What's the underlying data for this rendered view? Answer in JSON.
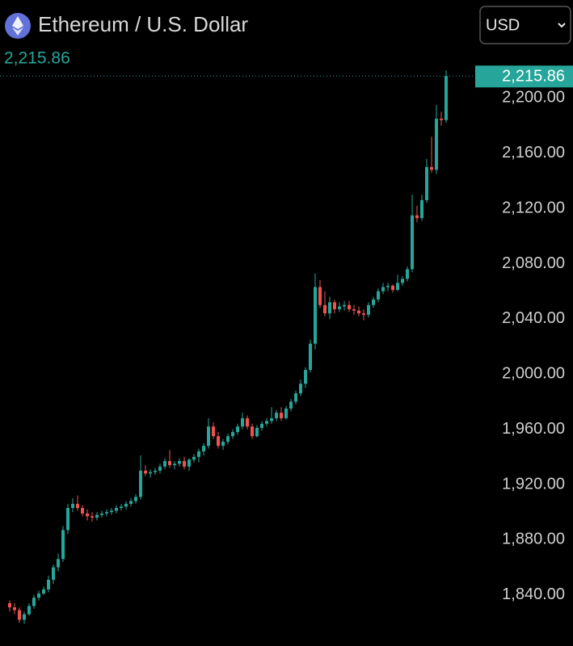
{
  "header": {
    "title": "Ethereum / U.S. Dollar",
    "currency": "USD"
  },
  "chart_data": {
    "type": "candlestick",
    "last_price": {
      "value": 2215.86,
      "label": "2,215.86"
    },
    "up_color": "#26a69a",
    "down_color": "#ef5350",
    "ylim": [
      1803,
      2271
    ],
    "yticks": [
      {
        "value": 1840,
        "label": "1,840.00"
      },
      {
        "value": 1880,
        "label": "1,880.00"
      },
      {
        "value": 1920,
        "label": "1,920.00"
      },
      {
        "value": 1960,
        "label": "1,960.00"
      },
      {
        "value": 2000,
        "label": "2,000.00"
      },
      {
        "value": 2040,
        "label": "2,040.00"
      },
      {
        "value": 2080,
        "label": "2,080.00"
      },
      {
        "value": 2120,
        "label": "2,120.00"
      },
      {
        "value": 2160,
        "label": "2,160.00"
      },
      {
        "value": 2200,
        "label": "2,200.00"
      }
    ],
    "ohlc": [
      [
        1834,
        1836,
        1828,
        1831
      ],
      [
        1831,
        1834,
        1826,
        1829
      ],
      [
        1829,
        1831,
        1820,
        1822
      ],
      [
        1822,
        1828,
        1819,
        1826
      ],
      [
        1826,
        1834,
        1825,
        1832
      ],
      [
        1832,
        1840,
        1830,
        1838
      ],
      [
        1838,
        1843,
        1836,
        1841
      ],
      [
        1841,
        1846,
        1840,
        1844
      ],
      [
        1844,
        1854,
        1842,
        1851
      ],
      [
        1851,
        1862,
        1848,
        1860
      ],
      [
        1860,
        1870,
        1857,
        1866
      ],
      [
        1866,
        1890,
        1864,
        1887
      ],
      [
        1887,
        1906,
        1884,
        1903
      ],
      [
        1903,
        1910,
        1900,
        1906
      ],
      [
        1906,
        1912,
        1901,
        1903
      ],
      [
        1903,
        1905,
        1897,
        1899
      ],
      [
        1899,
        1902,
        1894,
        1897
      ],
      [
        1897,
        1900,
        1893,
        1896
      ],
      [
        1896,
        1900,
        1894,
        1898
      ],
      [
        1898,
        1901,
        1896,
        1899
      ],
      [
        1899,
        1902,
        1897,
        1900
      ],
      [
        1900,
        1903,
        1898,
        1901
      ],
      [
        1901,
        1905,
        1899,
        1903
      ],
      [
        1903,
        1906,
        1901,
        1904
      ],
      [
        1904,
        1908,
        1902,
        1906
      ],
      [
        1906,
        1910,
        1904,
        1908
      ],
      [
        1908,
        1913,
        1906,
        1911
      ],
      [
        1911,
        1941,
        1909,
        1930
      ],
      [
        1930,
        1934,
        1926,
        1928
      ],
      [
        1928,
        1931,
        1925,
        1929
      ],
      [
        1929,
        1932,
        1927,
        1930
      ],
      [
        1930,
        1935,
        1928,
        1933
      ],
      [
        1933,
        1939,
        1931,
        1937
      ],
      [
        1937,
        1945,
        1932,
        1934
      ],
      [
        1934,
        1937,
        1931,
        1935
      ],
      [
        1935,
        1939,
        1933,
        1937
      ],
      [
        1937,
        1940,
        1931,
        1933
      ],
      [
        1933,
        1939,
        1930,
        1938
      ],
      [
        1938,
        1942,
        1936,
        1940
      ],
      [
        1940,
        1946,
        1936,
        1944
      ],
      [
        1944,
        1950,
        1941,
        1948
      ],
      [
        1948,
        1968,
        1946,
        1962
      ],
      [
        1962,
        1965,
        1953,
        1955
      ],
      [
        1955,
        1958,
        1946,
        1948
      ],
      [
        1948,
        1953,
        1945,
        1951
      ],
      [
        1951,
        1957,
        1949,
        1955
      ],
      [
        1955,
        1960,
        1953,
        1958
      ],
      [
        1958,
        1964,
        1956,
        1962
      ],
      [
        1962,
        1972,
        1960,
        1968
      ],
      [
        1968,
        1970,
        1960,
        1962
      ],
      [
        1962,
        1964,
        1953,
        1955
      ],
      [
        1955,
        1963,
        1954,
        1961
      ],
      [
        1961,
        1966,
        1959,
        1964
      ],
      [
        1964,
        1968,
        1962,
        1966
      ],
      [
        1966,
        1976,
        1964,
        1968
      ],
      [
        1968,
        1974,
        1966,
        1972
      ],
      [
        1972,
        1976,
        1966,
        1968
      ],
      [
        1968,
        1977,
        1967,
        1975
      ],
      [
        1975,
        1982,
        1973,
        1980
      ],
      [
        1980,
        1988,
        1978,
        1986
      ],
      [
        1986,
        1996,
        1984,
        1993
      ],
      [
        1993,
        2005,
        1990,
        2003
      ],
      [
        2003,
        2025,
        2001,
        2022
      ],
      [
        2022,
        2073,
        2018,
        2063
      ],
      [
        2063,
        2068,
        2048,
        2050
      ],
      [
        2050,
        2060,
        2042,
        2044
      ],
      [
        2044,
        2056,
        2040,
        2052
      ],
      [
        2052,
        2054,
        2044,
        2047
      ],
      [
        2047,
        2052,
        2045,
        2049
      ],
      [
        2049,
        2053,
        2046,
        2050
      ],
      [
        2050,
        2053,
        2045,
        2047
      ],
      [
        2047,
        2050,
        2043,
        2046
      ],
      [
        2046,
        2049,
        2042,
        2044
      ],
      [
        2044,
        2047,
        2039,
        2043
      ],
      [
        2043,
        2052,
        2041,
        2050
      ],
      [
        2050,
        2056,
        2048,
        2054
      ],
      [
        2054,
        2062,
        2052,
        2060
      ],
      [
        2060,
        2066,
        2058,
        2063
      ],
      [
        2063,
        2066,
        2060,
        2064
      ],
      [
        2064,
        2065,
        2059,
        2061
      ],
      [
        2061,
        2072,
        2060,
        2066
      ],
      [
        2066,
        2071,
        2064,
        2069
      ],
      [
        2069,
        2078,
        2067,
        2076
      ],
      [
        2076,
        2130,
        2074,
        2115
      ],
      [
        2115,
        2122,
        2110,
        2113
      ],
      [
        2113,
        2130,
        2111,
        2126
      ],
      [
        2126,
        2156,
        2124,
        2150
      ],
      [
        2150,
        2172,
        2146,
        2148
      ],
      [
        2148,
        2195,
        2145,
        2185
      ],
      [
        2185,
        2190,
        2180,
        2184
      ],
      [
        2184,
        2220,
        2182,
        2215.86
      ]
    ]
  }
}
